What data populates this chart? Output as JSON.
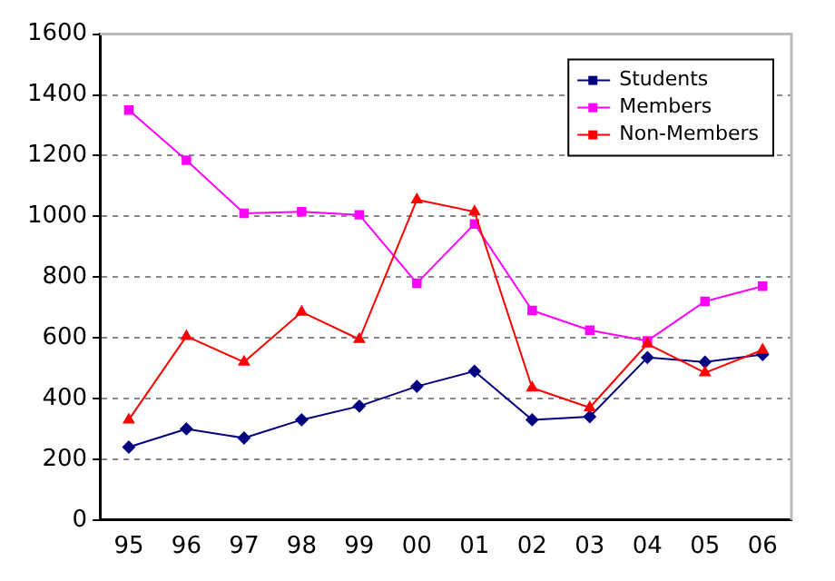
{
  "chart_data": {
    "type": "line",
    "categories": [
      "95",
      "96",
      "97",
      "98",
      "99",
      "00",
      "01",
      "02",
      "03",
      "04",
      "05",
      "06"
    ],
    "series": [
      {
        "name": "Students",
        "color": "#000080",
        "marker": "diamond",
        "values": [
          240,
          300,
          270,
          330,
          375,
          440,
          490,
          330,
          340,
          535,
          520,
          545
        ]
      },
      {
        "name": "Members",
        "color": "#ff00ff",
        "marker": "square",
        "values": [
          1350,
          1185,
          1010,
          1015,
          1005,
          780,
          975,
          690,
          625,
          590,
          720,
          770
        ]
      },
      {
        "name": "Non-Members",
        "color": "#ff0000",
        "marker": "triangle",
        "values": [
          330,
          605,
          520,
          685,
          595,
          1055,
          1015,
          435,
          370,
          580,
          485,
          560
        ]
      }
    ],
    "ylim": [
      0,
      1600
    ],
    "yticks": [
      0,
      200,
      400,
      600,
      800,
      1000,
      1200,
      1400,
      1600
    ],
    "grid": "y",
    "legend": "top right"
  }
}
